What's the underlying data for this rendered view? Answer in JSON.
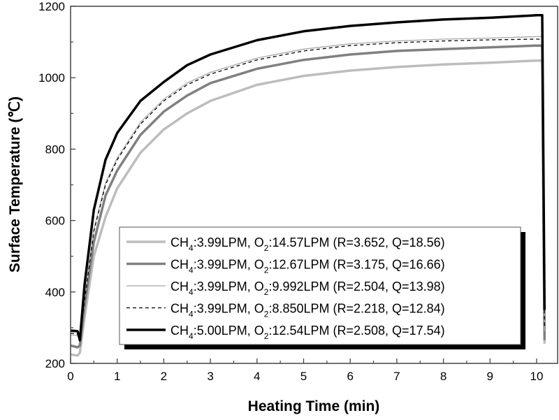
{
  "chart_data": {
    "type": "line",
    "title": "",
    "xlabel": "Heating Time (min)",
    "ylabel": "Surface Temperature (℃)",
    "xlim": [
      0,
      10.45
    ],
    "ylim": [
      200,
      1200
    ],
    "xticks": [
      0,
      1,
      2,
      3,
      4,
      5,
      6,
      7,
      8,
      9,
      10
    ],
    "yticks": [
      200,
      400,
      600,
      800,
      1000,
      1200
    ],
    "grid": false,
    "legend_placement": "lower-right",
    "x": [
      0,
      0.15,
      0.2,
      0.3,
      0.5,
      0.75,
      1,
      1.5,
      2,
      2.5,
      3,
      4,
      5,
      6,
      7,
      8,
      9,
      10,
      10.12,
      10.17
    ],
    "series": [
      {
        "name": "CH4:3.99LPM, O2:14.57LPM (R=3.652, Q=18.56)",
        "label_parts": [
          "CH",
          "4",
          ":3.99LPM, O",
          "2",
          ":14.57LPM (R=3.652, Q=18.56)"
        ],
        "color": "#bdbdbd",
        "style": "thick",
        "values": [
          225,
          222,
          230,
          330,
          500,
          610,
          690,
          790,
          855,
          900,
          935,
          980,
          1005,
          1020,
          1030,
          1037,
          1042,
          1048,
          1048,
          255
        ]
      },
      {
        "name": "CH4:3.99LPM, O2:12.67LPM (R=3.175, Q=16.66)",
        "label_parts": [
          "CH",
          "4",
          ":3.99LPM, O",
          "2",
          ":12.67LPM (R=3.175, Q=16.66)"
        ],
        "color": "#808080",
        "style": "thick",
        "values": [
          250,
          245,
          250,
          360,
          540,
          670,
          740,
          840,
          905,
          950,
          985,
          1025,
          1050,
          1065,
          1075,
          1080,
          1085,
          1090,
          1090,
          265
        ]
      },
      {
        "name": "CH4:3.99LPM, O2:9.992LPM (R=2.504, Q=13.98)",
        "label_parts": [
          "CH",
          "4",
          ":3.99LPM, O",
          "2",
          ":9.992LPM (R=2.504, Q=13.98)"
        ],
        "color": "#a8a8a8",
        "style": "thin",
        "values": [
          280,
          278,
          275,
          380,
          575,
          705,
          775,
          875,
          940,
          985,
          1015,
          1055,
          1080,
          1095,
          1103,
          1108,
          1111,
          1115,
          1115,
          290
        ]
      },
      {
        "name": "CH4:3.99LPM, O2:8.850LPM (R=2.218, Q=12.84)",
        "label_parts": [
          "CH",
          "4",
          ":3.99LPM, O",
          "2",
          ":8.850LPM (R=2.218, Q=12.84)"
        ],
        "color": "#000000",
        "style": "dashed",
        "values": [
          285,
          282,
          270,
          375,
          570,
          700,
          770,
          870,
          935,
          980,
          1010,
          1050,
          1075,
          1090,
          1098,
          1103,
          1106,
          1108,
          1108,
          300
        ]
      },
      {
        "name": "CH4:5.00LPM, O2:12.54LPM (R=2.508, Q=17.54)",
        "label_parts": [
          "CH",
          "4",
          ":5.00LPM, O",
          "2",
          ":12.54LPM (R=2.508, Q=17.54)"
        ],
        "color": "#000000",
        "style": "thick",
        "values": [
          292,
          290,
          265,
          420,
          630,
          770,
          845,
          935,
          988,
          1035,
          1065,
          1105,
          1130,
          1145,
          1155,
          1163,
          1168,
          1175,
          1175,
          350
        ]
      }
    ]
  }
}
